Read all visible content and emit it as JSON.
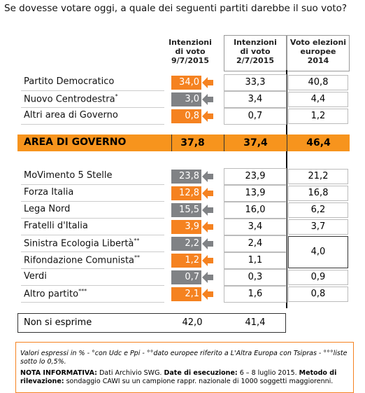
{
  "title": "Se dovesse votare oggi, a quale dei seguenti partiti darebbe il suo voto?",
  "columns": [
    [
      "Intenzioni",
      "di voto",
      "9/7/2015"
    ],
    [
      "Intenzioni",
      "di voto",
      "2/7/2015"
    ],
    [
      "Voto elezioni",
      "europee",
      "2014"
    ]
  ],
  "groups": [
    [
      {
        "name": "Partito Democratico",
        "v1": "34,0",
        "color": "#f58220",
        "v2": "33,3",
        "v3": "40,8"
      },
      {
        "name": "Nuovo Centrodestra",
        "note": "*",
        "v1": "3,0",
        "color": "#808285",
        "v2": "3,4",
        "v3": "4,4"
      },
      {
        "name": "Altri area di Governo",
        "v1": "0,8",
        "color": "#f58220",
        "v2": "0,7",
        "v3": "1,2"
      }
    ],
    [
      {
        "name": "MoVimento 5 Stelle",
        "v1": "23,8",
        "color": "#808285",
        "v2": "23,9",
        "v3": "21,2"
      },
      {
        "name": "Forza Italia",
        "v1": "12,8",
        "color": "#f58220",
        "v2": "13,9",
        "v3": "16,8"
      },
      {
        "name": "Lega Nord",
        "v1": "15,5",
        "color": "#808285",
        "v2": "16,0",
        "v3": "6,2"
      },
      {
        "name": "Fratelli d'Italia",
        "v1": "3,9",
        "color": "#f58220",
        "v2": "3,4",
        "v3": "3,7"
      },
      {
        "name": "Sinistra Ecologia Libertà",
        "note": "**",
        "v1": "2,2",
        "color": "#808285",
        "v2": "2,4",
        "v3": "4,0"
      },
      {
        "name": "Rifondazione Comunista",
        "note": "**",
        "v1": "1,2",
        "color": "#f58220",
        "v2": "1,1",
        "v3": null
      },
      {
        "name": "Verdi",
        "v1": "0,7",
        "color": "#808285",
        "v2": "0,3",
        "v3": "0,9"
      },
      {
        "name": "Altro partito",
        "note": "***",
        "v1": "2,1",
        "color": "#f58220",
        "v2": "1,6",
        "v3": "0,8"
      }
    ]
  ],
  "total": {
    "name": "AREA DI GOVERNO",
    "v1": "37,8",
    "v2": "37,4",
    "v3": "46,4"
  },
  "none": {
    "name": "Non si esprime",
    "v1": "42,0",
    "v2": "41,4"
  },
  "footer": {
    "notes": "Valori espressi in % - °con Udc e Ppi - °°dato europee riferito a L'Altra Europa con Tsipras - °°°liste sotto lo 0,5%.",
    "info_label": "NOTA INFORMATIVA:",
    "info_a": "Dati Archivio SWG.",
    "date_label": "Date di esecuzione:",
    "date": "6 – 8 luglio 2015.",
    "method_label": "Metodo di rilevazione:",
    "method": "sondaggio CAWI su un campione rappr. nazionale di 1000 soggetti maggiorenni."
  }
}
